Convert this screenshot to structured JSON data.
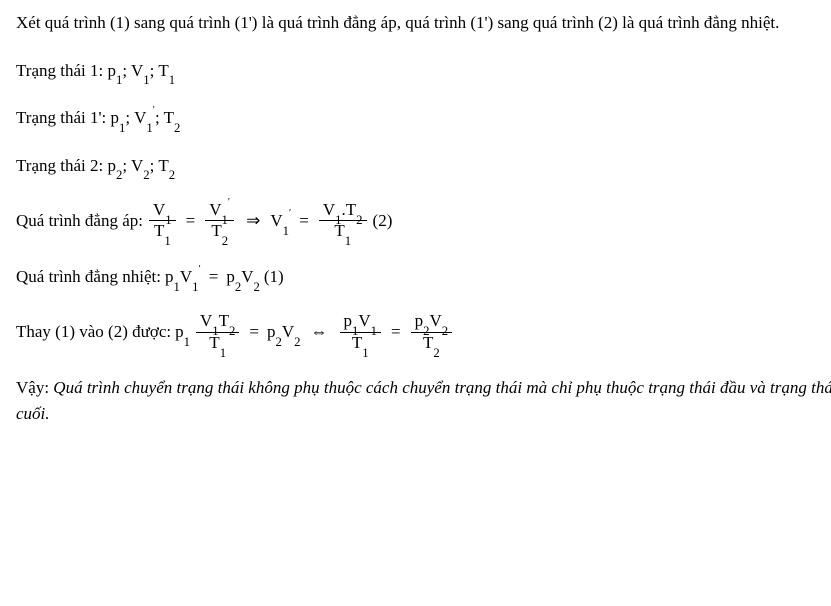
{
  "p1": "Xét quá trình (1) sang quá trình (1') là quá trình đẳng áp, quá trình (1') sang quá trình (2) là quá trình đẳng nhiệt.",
  "state1_label": "Trạng thái 1: p",
  "state1_rest": "; V",
  "state1_end": "; T",
  "state1p_label": "Trạng thái 1': p",
  "state1p_rest": "; V",
  "state1p_end": "; T",
  "state2_label": "Trạng thái 2: p",
  "state2_rest": "; V",
  "state2_end": "; T",
  "sub1": "1",
  "sub2": "2",
  "isobar_label": "Quá trình đẳng áp:",
  "isobar_eqtag": "(2)",
  "isotherm_label": "Quá trình đẳng nhiệt:",
  "isotherm_eqtag": "(1)",
  "subst_label": "Thay (1) vào (2) được:",
  "conclusion_lead": "Vậy: ",
  "conclusion_text": "Quá trình chuyển trạng thái không phụ thuộc cách chuyển trạng thái mà chỉ phụ thuộc trạng thái đầu và trạng thái cuối.",
  "V": "V",
  "T": "T",
  "p": "p",
  "eq": "=",
  "imply": "⇒",
  "iff": "⇔",
  "dot": "."
}
